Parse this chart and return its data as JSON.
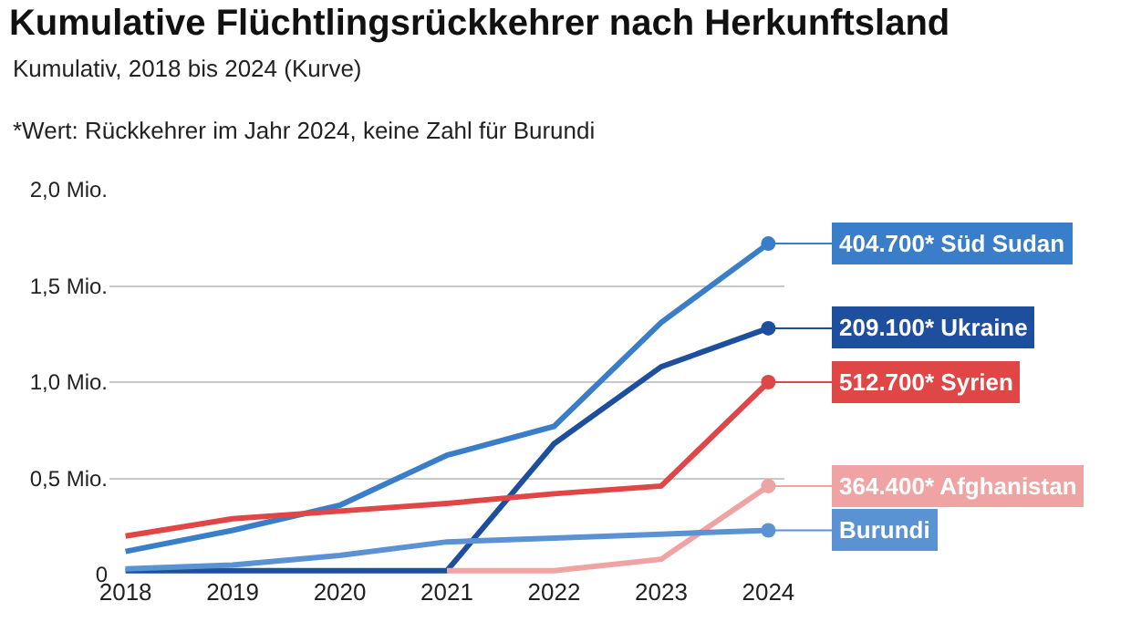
{
  "chart_data": {
    "type": "line",
    "title": "Kumulative Flüchtlingsrückkehrer nach Herkunftsland",
    "subtitle": "Kumulativ, 2018 bis 2024 (Kurve)",
    "categories": [
      "2018",
      "2019",
      "2020",
      "2021",
      "2022",
      "2023",
      "2024"
    ],
    "series": [
      {
        "color": "#3a7dc9",
        "values": [
          0.12,
          0.23,
          0.36,
          0.62,
          0.77,
          1.31,
          1.72
        ]
      },
      {
        "color": "#1d4f9e",
        "values": [
          0.02,
          0.02,
          0.02,
          0.02,
          0.68,
          1.08,
          1.28
        ]
      },
      {
        "color": "#e04646",
        "values": [
          0.2,
          0.29,
          0.33,
          0.37,
          0.42,
          0.46,
          1.0
        ]
      },
      {
        "color": "#f0a3a3",
        "values": [
          null,
          null,
          null,
          0.02,
          0.02,
          0.08,
          0.46
        ]
      },
      {
        "color": "#5b92d4",
        "values": [
          0.03,
          0.05,
          0.1,
          0.17,
          0.19,
          0.21,
          0.23
        ]
      }
    ],
    "annotations": [
      "*Wert: Rückkehrer im Jahr 2024, keine Zahl für Burundi",
      {
        "text": "404.700* Süd Sudan",
        "x": "2024",
        "y": 1.72
      },
      {
        "text": "209.100* Ukraine",
        "x": "2024",
        "y": 1.28
      },
      {
        "text": "512.700* Syrien",
        "x": "2024",
        "y": 1.0
      },
      {
        "text": "364.400* Afghanistan",
        "x": "2024",
        "y": 0.46
      },
      {
        "text": "Burundi",
        "x": "2024",
        "y": 0.23
      }
    ],
    "ylim": [
      0,
      2.0
    ],
    "yticks": [
      {
        "value": 0,
        "label": "0"
      },
      {
        "value": 0.5,
        "label": "0,5 Mio."
      },
      {
        "value": 1.0,
        "label": "1,0 Mio."
      },
      {
        "value": 1.5,
        "label": "1,5 Mio."
      },
      {
        "value": 2.0,
        "label": "2,0 Mio."
      }
    ],
    "grid": "y",
    "line_style": "solid"
  }
}
